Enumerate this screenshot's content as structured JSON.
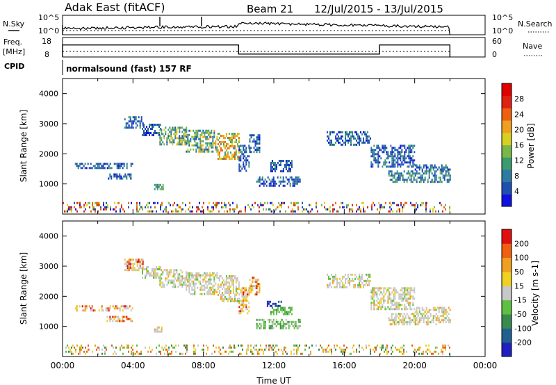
{
  "header": {
    "station": "Adak East (fitACF)",
    "beam": "Beam 21",
    "date_range": "12/Jul/2015 - 13/Jul/2015"
  },
  "strips": {
    "nsky_label": "N.Sky",
    "nsky_ticks": [
      "10^5",
      "10^0"
    ],
    "nsearch_label": "N.Search",
    "nsearch_ticks": [
      "10^5",
      "10^0"
    ],
    "freq_label": "Freq.",
    "freq_unit": "[MHz]",
    "freq_ticks": [
      "18",
      "8"
    ],
    "nave_label": "Nave",
    "nave_ticks": [
      "60",
      "0"
    ],
    "cpid_label": "CPID",
    "cpid_text": "normalsound (fast) 157 RF",
    "freq_steps": [
      [
        0.0,
        0.62
      ],
      [
        10.0,
        0.15
      ],
      [
        18.0,
        0.62
      ],
      [
        22.0,
        0.62
      ]
    ]
  },
  "chart_data": [
    {
      "type": "heatmap",
      "panel": "power",
      "ylabel": "Slant Range [km]",
      "xlabel": "",
      "xlim": [
        0,
        24
      ],
      "ylim": [
        0,
        4500
      ],
      "yticks": [
        "1000",
        "2000",
        "3000",
        "4000"
      ],
      "xticks": [],
      "colorbar": {
        "label": "Power [dB]",
        "ticks": [
          "4",
          "8",
          "12",
          "16",
          "20",
          "24",
          "28"
        ],
        "colors": [
          "#1010e0",
          "#1f4fb0",
          "#2f7aa0",
          "#3a9a70",
          "#78b848",
          "#d8d020",
          "#f0a020",
          "#ee6010",
          "#e02010",
          "#e00000"
        ]
      },
      "regions": [
        {
          "t0": 3.5,
          "t1": 4.6,
          "r0": 2900,
          "r1": 3250,
          "c": "mix_blue"
        },
        {
          "t0": 4.5,
          "t1": 5.6,
          "r0": 2600,
          "r1": 3000,
          "c": "mix_blue"
        },
        {
          "t0": 5.5,
          "t1": 7.0,
          "r0": 2300,
          "r1": 2900,
          "c": "mix_power"
        },
        {
          "t0": 7.0,
          "t1": 8.8,
          "r0": 2050,
          "r1": 2800,
          "c": "mix_power"
        },
        {
          "t0": 8.8,
          "t1": 10.0,
          "r0": 1800,
          "r1": 2700,
          "c": "mix_orange"
        },
        {
          "t0": 10.0,
          "t1": 10.6,
          "r0": 1450,
          "r1": 2300,
          "c": "mix_blue"
        },
        {
          "t0": 10.6,
          "t1": 11.2,
          "r0": 2050,
          "r1": 2650,
          "c": "mix_blue"
        },
        {
          "t0": 11.8,
          "t1": 13.0,
          "r0": 1400,
          "r1": 1800,
          "c": "mix_blue"
        },
        {
          "t0": 11.0,
          "t1": 13.5,
          "r0": 950,
          "r1": 1250,
          "c": "mix_blue"
        },
        {
          "t0": 0.7,
          "t1": 4.0,
          "r0": 1500,
          "r1": 1700,
          "c": "mix_blue"
        },
        {
          "t0": 2.5,
          "t1": 4.0,
          "r0": 1200,
          "r1": 1350,
          "c": "mix_blue"
        },
        {
          "t0": 5.2,
          "t1": 5.7,
          "r0": 800,
          "r1": 1000,
          "c": "mix_green"
        },
        {
          "t0": 15.0,
          "t1": 17.5,
          "r0": 2300,
          "r1": 2750,
          "c": "mix_blue"
        },
        {
          "t0": 17.5,
          "t1": 20.0,
          "r0": 1550,
          "r1": 2300,
          "c": "mix_blue"
        },
        {
          "t0": 18.5,
          "t1": 22.0,
          "r0": 1050,
          "r1": 1450,
          "c": "mix_blue_green"
        },
        {
          "t0": 20.0,
          "t1": 22.0,
          "r0": 1450,
          "r1": 1650,
          "c": "mix_blue"
        },
        {
          "t0": 0.0,
          "t1": 22.0,
          "r0": 80,
          "r1": 400,
          "c": "mix_ground"
        }
      ]
    },
    {
      "type": "heatmap",
      "panel": "velocity",
      "ylabel": "Slant Range [km]",
      "xlabel": "Time UT",
      "xlim": [
        0,
        24
      ],
      "ylim": [
        0,
        4500
      ],
      "yticks": [
        "1000",
        "2000",
        "3000",
        "4000"
      ],
      "xticks": [
        "00:00",
        "04:00",
        "08:00",
        "12:00",
        "16:00",
        "20:00",
        "00:00"
      ],
      "colorbar": {
        "label": "Velocity [m s-1]",
        "ticks": [
          "200",
          "100",
          "50",
          "15",
          "-15",
          "-50",
          "-100",
          "-200"
        ],
        "colors": [
          "#2020c0",
          "#206090",
          "#3a8a50",
          "#5ec040",
          "#c8c8c8",
          "#f0d020",
          "#f0a020",
          "#f06010",
          "#e01010"
        ]
      },
      "regions": [
        {
          "t0": 3.5,
          "t1": 4.6,
          "r0": 2900,
          "r1": 3250,
          "c": "mix_vel_orange"
        },
        {
          "t0": 4.5,
          "t1": 5.6,
          "r0": 2600,
          "r1": 3000,
          "c": "mix_vel_gray"
        },
        {
          "t0": 5.5,
          "t1": 7.0,
          "r0": 2300,
          "r1": 2900,
          "c": "mix_vel_gray"
        },
        {
          "t0": 7.0,
          "t1": 8.8,
          "r0": 2050,
          "r1": 2800,
          "c": "mix_vel_gray"
        },
        {
          "t0": 8.8,
          "t1": 10.0,
          "r0": 1800,
          "r1": 2700,
          "c": "mix_vel_gray"
        },
        {
          "t0": 10.0,
          "t1": 10.6,
          "r0": 1450,
          "r1": 2300,
          "c": "mix_vel_orange"
        },
        {
          "t0": 10.6,
          "t1": 11.2,
          "r0": 2050,
          "r1": 2650,
          "c": "mix_vel_orange"
        },
        {
          "t0": 11.6,
          "t1": 12.4,
          "r0": 1650,
          "r1": 1850,
          "c": "mix_vel_blue"
        },
        {
          "t0": 11.8,
          "t1": 13.0,
          "r0": 1400,
          "r1": 1650,
          "c": "mix_vel_green"
        },
        {
          "t0": 11.0,
          "t1": 13.5,
          "r0": 950,
          "r1": 1250,
          "c": "mix_vel_green"
        },
        {
          "t0": 0.7,
          "t1": 4.0,
          "r0": 1500,
          "r1": 1700,
          "c": "mix_vel_orange"
        },
        {
          "t0": 2.5,
          "t1": 4.0,
          "r0": 1200,
          "r1": 1350,
          "c": "mix_vel_orange"
        },
        {
          "t0": 5.2,
          "t1": 5.7,
          "r0": 800,
          "r1": 1000,
          "c": "mix_vel_gray"
        },
        {
          "t0": 15.0,
          "t1": 17.5,
          "r0": 2300,
          "r1": 2750,
          "c": "mix_vel_gray"
        },
        {
          "t0": 17.5,
          "t1": 20.0,
          "r0": 1550,
          "r1": 2300,
          "c": "mix_vel_gray"
        },
        {
          "t0": 18.5,
          "t1": 22.0,
          "r0": 1050,
          "r1": 1450,
          "c": "mix_vel_gray"
        },
        {
          "t0": 20.0,
          "t1": 22.0,
          "r0": 1450,
          "r1": 1650,
          "c": "mix_vel_gray"
        },
        {
          "t0": 0.0,
          "t1": 22.0,
          "r0": 80,
          "r1": 400,
          "c": "mix_vel_ground"
        }
      ]
    }
  ]
}
